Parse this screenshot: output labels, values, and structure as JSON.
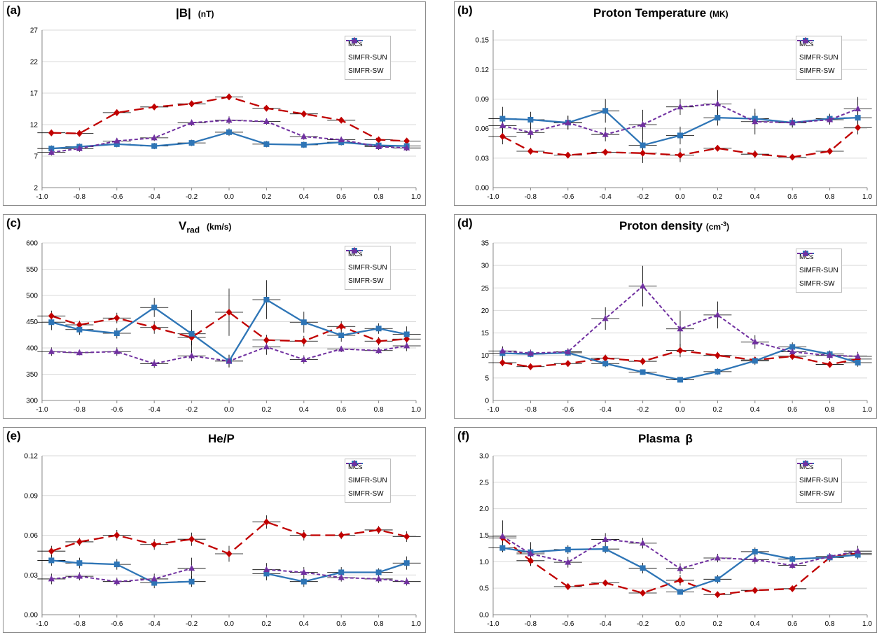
{
  "figure": {
    "colors": {
      "MCs": "#c00000",
      "SIMFR-SUN": "#2e75b6",
      "SIMFR-SW": "#7030a0"
    },
    "markers": {
      "MCs": "diamond",
      "SIMFR-SUN": "square",
      "SIMFR-SW": "triangle"
    },
    "dashes": {
      "MCs": "14,7",
      "SIMFR-SUN": "",
      "SIMFR-SW": "5,3"
    }
  },
  "panels": [
    {
      "label": "(a)",
      "title": "|B|",
      "units": "(nT)"
    },
    {
      "label": "(b)",
      "title": "Proton Temperature",
      "units": "(MK)"
    },
    {
      "label": "(c)",
      "title_main": "V",
      "title_sub": "rad",
      "units": "(km/s)"
    },
    {
      "label": "(d)",
      "title": "Proton density",
      "units_pre": "(cm",
      "units_sup": "-3",
      "units_post": ")"
    },
    {
      "label": "(e)",
      "title": "He/P"
    },
    {
      "label": "(f)",
      "title_main": "Plasma",
      "title_sym": "β"
    }
  ],
  "chart_data": [
    {
      "type": "line",
      "title": "|B| (nT)",
      "x": [
        -0.95,
        -0.8,
        -0.6,
        -0.4,
        -0.2,
        0.0,
        0.2,
        0.4,
        0.6,
        0.8,
        0.95
      ],
      "xlim": [
        -1.0,
        1.0
      ],
      "xticks": [
        "-1.0",
        "-0.8",
        "-0.6",
        "-0.4",
        "-0.2",
        "0.0",
        "0.2",
        "0.4",
        "0.6",
        "0.8",
        "1.0"
      ],
      "ylim": [
        2,
        27
      ],
      "yticks": [
        "2",
        "7",
        "12",
        "17",
        "22",
        "27"
      ],
      "legend": "top-right",
      "series": [
        {
          "name": "MCs",
          "values": [
            10.7,
            10.6,
            13.9,
            14.8,
            15.3,
            16.4,
            14.6,
            13.7,
            12.7,
            9.6,
            9.4
          ],
          "err": [
            0.5,
            0.5,
            0.5,
            0.5,
            0.5,
            0.5,
            0.5,
            0.5,
            0.5,
            0.5,
            0.5
          ]
        },
        {
          "name": "SIMFR-SUN",
          "values": [
            8.2,
            8.5,
            8.9,
            8.6,
            9.1,
            10.8,
            8.9,
            8.8,
            9.2,
            8.7,
            8.6
          ],
          "err": [
            0.5,
            0.5,
            0.5,
            0.5,
            0.5,
            0.6,
            0.5,
            0.5,
            0.5,
            0.5,
            0.5
          ]
        },
        {
          "name": "SIMFR-SW",
          "values": [
            7.6,
            8.2,
            9.4,
            9.9,
            12.3,
            12.7,
            12.5,
            10.1,
            9.6,
            8.5,
            8.3
          ],
          "err": [
            0.5,
            0.5,
            0.5,
            0.5,
            0.5,
            0.6,
            0.5,
            0.5,
            0.5,
            0.5,
            0.5
          ]
        }
      ]
    },
    {
      "type": "line",
      "title": "Proton Temperature (MK)",
      "x": [
        -0.95,
        -0.8,
        -0.6,
        -0.4,
        -0.2,
        0.0,
        0.2,
        0.4,
        0.6,
        0.8,
        0.95
      ],
      "xlim": [
        -1.0,
        1.0
      ],
      "xticks": [
        "-1.0",
        "-0.8",
        "-0.6",
        "-0.4",
        "-0.2",
        "0.0",
        "0.2",
        "0.4",
        "0.6",
        "0.8",
        "1.0"
      ],
      "ylim": [
        0,
        0.16
      ],
      "yticks": [
        "0.00",
        "0.03",
        "0.06",
        "0.09",
        "0.12",
        "0.15"
      ],
      "legend": "top-right",
      "series": [
        {
          "name": "MCs",
          "values": [
            0.052,
            0.037,
            0.033,
            0.036,
            0.035,
            0.033,
            0.04,
            0.034,
            0.031,
            0.037,
            0.061
          ],
          "err": [
            0.008,
            0.003,
            0.003,
            0.003,
            0.01,
            0.007,
            0.003,
            0.004,
            0.003,
            0.003,
            0.007
          ]
        },
        {
          "name": "SIMFR-SUN",
          "values": [
            0.07,
            0.069,
            0.066,
            0.078,
            0.043,
            0.053,
            0.071,
            0.07,
            0.066,
            0.07,
            0.071
          ],
          "err": [
            0.012,
            0.008,
            0.007,
            0.012,
            0.006,
            0.009,
            0.008,
            0.006,
            0.005,
            0.005,
            0.007
          ]
        },
        {
          "name": "SIMFR-SW",
          "values": [
            0.063,
            0.056,
            0.066,
            0.054,
            0.064,
            0.082,
            0.085,
            0.067,
            0.066,
            0.069,
            0.08
          ],
          "err": [
            0.008,
            0.006,
            0.007,
            0.007,
            0.015,
            0.008,
            0.014,
            0.013,
            0.005,
            0.005,
            0.012
          ]
        }
      ]
    },
    {
      "type": "line",
      "title": "Vrad (km/s)",
      "x": [
        -0.95,
        -0.8,
        -0.6,
        -0.4,
        -0.2,
        0.0,
        0.2,
        0.4,
        0.6,
        0.8,
        0.95
      ],
      "xlim": [
        -1.0,
        1.0
      ],
      "xticks": [
        "-1.0",
        "-0.8",
        "-0.6",
        "-0.4",
        "-0.2",
        "0.0",
        "0.2",
        "0.4",
        "0.6",
        "0.8",
        "1.0"
      ],
      "ylim": [
        300,
        600
      ],
      "yticks": [
        "300",
        "350",
        "400",
        "450",
        "500",
        "550",
        "600"
      ],
      "legend": "top-right",
      "series": [
        {
          "name": "MCs",
          "values": [
            461,
            444,
            457,
            439,
            420,
            468,
            415,
            413,
            441,
            413,
            417
          ],
          "err": [
            10,
            8,
            10,
            12,
            15,
            45,
            10,
            10,
            10,
            8,
            10
          ]
        },
        {
          "name": "SIMFR-SUN",
          "values": [
            449,
            435,
            428,
            477,
            427,
            375,
            492,
            449,
            424,
            437,
            426
          ],
          "err": [
            15,
            10,
            10,
            18,
            45,
            12,
            37,
            20,
            12,
            10,
            15
          ]
        },
        {
          "name": "SIMFR-SW",
          "values": [
            393,
            391,
            393,
            370,
            385,
            375,
            402,
            378,
            398,
            395,
            404
          ],
          "err": [
            8,
            5,
            8,
            8,
            10,
            12,
            15,
            8,
            6,
            6,
            10
          ]
        }
      ]
    },
    {
      "type": "line",
      "title": "Proton density (cm-3)",
      "x": [
        -0.95,
        -0.8,
        -0.6,
        -0.4,
        -0.2,
        0.0,
        0.2,
        0.4,
        0.6,
        0.8,
        0.95
      ],
      "xlim": [
        -1.0,
        1.0
      ],
      "xticks": [
        "-1.0",
        "-0.8",
        "-0.6",
        "-0.4",
        "-0.2",
        "0.0",
        "0.2",
        "0.4",
        "0.6",
        "0.8",
        "1.0"
      ],
      "ylim": [
        0,
        35
      ],
      "yticks": [
        "0",
        "5",
        "10",
        "15",
        "20",
        "25",
        "30",
        "35"
      ],
      "legend": "top-right",
      "series": [
        {
          "name": "MCs",
          "values": [
            8.4,
            7.5,
            8.2,
            9.4,
            8.7,
            11.1,
            10.0,
            9.0,
            9.8,
            8.0,
            9.2
          ],
          "err": [
            0.8,
            0.7,
            0.7,
            0.8,
            0.8,
            1.5,
            0.8,
            0.7,
            0.8,
            0.7,
            0.8
          ]
        },
        {
          "name": "SIMFR-SUN",
          "values": [
            10.5,
            10.3,
            10.6,
            8.2,
            6.3,
            4.6,
            6.4,
            8.8,
            11.9,
            10.3,
            8.4
          ],
          "err": [
            1.5,
            0.7,
            0.7,
            0.8,
            0.6,
            0.6,
            0.7,
            0.9,
            1.0,
            0.8,
            0.9
          ]
        },
        {
          "name": "SIMFR-SW",
          "values": [
            11.0,
            10.5,
            10.8,
            18.2,
            25.4,
            15.9,
            19.0,
            13.0,
            10.8,
            10.0,
            9.8
          ],
          "err": [
            1.0,
            0.8,
            0.8,
            2.5,
            4.5,
            4.0,
            3.0,
            1.5,
            1.0,
            1.0,
            1.0
          ]
        }
      ]
    },
    {
      "type": "line",
      "title": "He/P",
      "x": [
        -0.95,
        -0.8,
        -0.6,
        -0.4,
        -0.2,
        0.0,
        0.2,
        0.4,
        0.6,
        0.8,
        0.95
      ],
      "xlim": [
        -1.0,
        1.0
      ],
      "xticks": [
        "-1.0",
        "-0.8",
        "-0.6",
        "-0.4",
        "-0.2",
        "0.0",
        "0.2",
        "0.4",
        "0.6",
        "0.8",
        "1.0"
      ],
      "ylim": [
        0,
        0.12
      ],
      "yticks": [
        "0.00",
        "0.03",
        "0.06",
        "0.09",
        "0.12"
      ],
      "legend": "top-right",
      "series": [
        {
          "name": "MCs",
          "values": [
            0.048,
            0.055,
            0.06,
            0.053,
            0.057,
            0.046,
            0.07,
            0.06,
            0.06,
            0.064,
            0.059
          ],
          "err": [
            0.004,
            0.003,
            0.004,
            0.004,
            0.005,
            0.006,
            0.005,
            0.004,
            0.003,
            0.003,
            0.004
          ]
        },
        {
          "name": "SIMFR-SUN",
          "values": [
            0.041,
            0.039,
            0.038,
            0.024,
            0.025,
            null,
            0.031,
            0.025,
            0.032,
            0.032,
            0.039
          ],
          "err": [
            0.004,
            0.004,
            0.004,
            0.004,
            0.004,
            null,
            0.005,
            0.004,
            0.004,
            0.003,
            0.005
          ]
        },
        {
          "name": "SIMFR-SW",
          "values": [
            0.027,
            0.029,
            0.025,
            0.027,
            0.035,
            null,
            0.034,
            0.032,
            0.028,
            0.027,
            0.025
          ],
          "err": [
            0.004,
            0.003,
            0.003,
            0.004,
            0.008,
            null,
            0.005,
            0.004,
            0.003,
            0.003,
            0.003
          ]
        }
      ]
    },
    {
      "type": "line",
      "title": "Plasma β",
      "x": [
        -0.95,
        -0.8,
        -0.6,
        -0.4,
        -0.2,
        0.0,
        0.2,
        0.4,
        0.6,
        0.8,
        0.95
      ],
      "xlim": [
        -1.0,
        1.0
      ],
      "xticks": [
        "-1.0",
        "-0.8",
        "-0.6",
        "-0.4",
        "-0.2",
        "0.0",
        "0.2",
        "0.4",
        "0.6",
        "0.8",
        "1.0"
      ],
      "ylim": [
        0,
        3.0
      ],
      "yticks": [
        "0.0",
        "0.5",
        "1.0",
        "1.5",
        "2.0",
        "2.5",
        "3.0"
      ],
      "legend": "top-right",
      "series": [
        {
          "name": "MCs",
          "values": [
            1.45,
            1.02,
            0.53,
            0.6,
            0.41,
            0.65,
            0.38,
            0.46,
            0.49,
            1.08,
            1.16
          ],
          "err": [
            0.1,
            0.1,
            0.05,
            0.05,
            0.05,
            0.1,
            0.05,
            0.05,
            0.05,
            0.08,
            0.08
          ]
        },
        {
          "name": "SIMFR-SUN",
          "values": [
            1.26,
            1.18,
            1.23,
            1.24,
            0.88,
            0.43,
            0.67,
            1.19,
            1.05,
            1.08,
            1.13
          ],
          "err": [
            0.08,
            0.08,
            0.08,
            0.08,
            0.1,
            0.05,
            0.08,
            0.08,
            0.06,
            0.06,
            0.08
          ]
        },
        {
          "name": "SIMFR-SW",
          "values": [
            1.48,
            1.15,
            0.99,
            1.42,
            1.35,
            0.87,
            1.07,
            1.04,
            0.93,
            1.1,
            1.2
          ],
          "err": [
            0.3,
            0.22,
            0.1,
            0.12,
            0.1,
            0.1,
            0.08,
            0.08,
            0.06,
            0.06,
            0.1
          ]
        }
      ]
    }
  ]
}
